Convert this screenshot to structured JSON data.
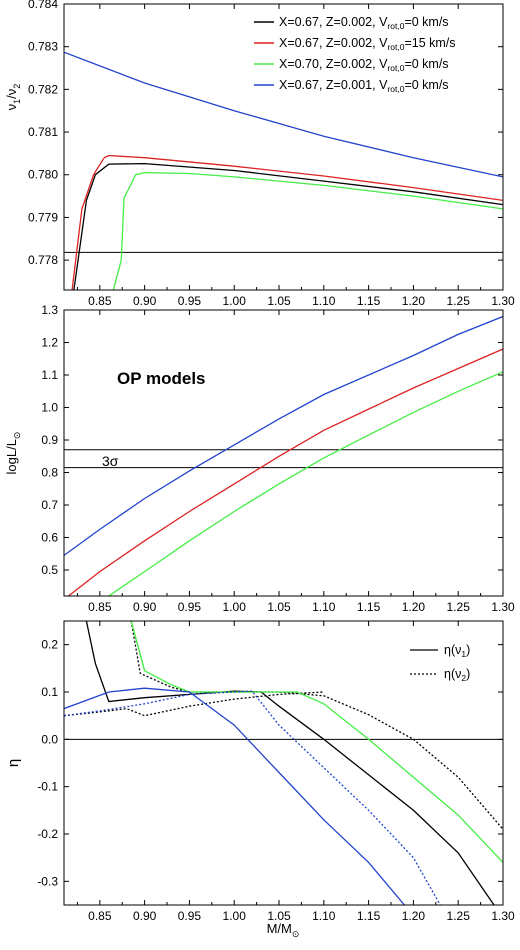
{
  "xlabel_main": "M/M",
  "xlabel_sub": "⊙",
  "x_ticks": [
    0.85,
    0.9,
    0.95,
    1.0,
    1.05,
    1.1,
    1.15,
    1.2,
    1.25,
    1.3
  ],
  "x_tick_labels": [
    "0.85",
    "0.90",
    "0.95",
    "1.00",
    "1.05",
    "1.10",
    "1.15",
    "1.20",
    "1.25",
    "1.30"
  ],
  "colors": {
    "black": "#000000",
    "red": "#dd2222",
    "green": "#44ee44",
    "blue": "#2244cc"
  },
  "chart_data": [
    {
      "type": "line",
      "ylabel": "ν1/ν2",
      "xlim": [
        0.81,
        1.3
      ],
      "ylim": [
        0.7773,
        0.784
      ],
      "y_ticks": [
        0.778,
        0.779,
        0.78,
        0.781,
        0.782,
        0.783,
        0.784
      ],
      "y_tick_labels": [
        "0.778",
        "0.779",
        "0.780",
        "0.781",
        "0.782",
        "0.783",
        "0.784"
      ],
      "legend_position": "top-right",
      "legend": [
        {
          "color": "black",
          "label": "X=0.67, Z=0.002, V",
          "sub": "rot,0",
          "tail": "=0 km/s"
        },
        {
          "color": "red",
          "label": "X=0.67, Z=0.002, V",
          "sub": "rot,0",
          "tail": "=15 km/s"
        },
        {
          "color": "green",
          "label": "X=0.70, Z=0.002, V",
          "sub": "rot,0",
          "tail": "=0 km/s"
        },
        {
          "color": "blue",
          "label": "X=0.67, Z=0.001, V",
          "sub": "rot,0",
          "tail": "=0 km/s"
        }
      ],
      "series": [
        {
          "color": "black",
          "dash": false,
          "points": [
            [
              0.821,
              0.7773
            ],
            [
              0.835,
              0.7794
            ],
            [
              0.845,
              0.78
            ],
            [
              0.86,
              0.78025
            ],
            [
              0.9,
              0.78026
            ],
            [
              1.0,
              0.7801
            ],
            [
              1.1,
              0.77985
            ],
            [
              1.2,
              0.7796
            ],
            [
              1.3,
              0.7793
            ]
          ]
        },
        {
          "color": "red",
          "dash": false,
          "points": [
            [
              0.819,
              0.7773
            ],
            [
              0.83,
              0.7792
            ],
            [
              0.843,
              0.78
            ],
            [
              0.855,
              0.7804
            ],
            [
              0.86,
              0.78045
            ],
            [
              0.9,
              0.7804
            ],
            [
              1.0,
              0.7802
            ],
            [
              1.1,
              0.77997
            ],
            [
              1.2,
              0.7797
            ],
            [
              1.3,
              0.7794
            ]
          ]
        },
        {
          "color": "green",
          "dash": false,
          "points": [
            [
              0.865,
              0.7773
            ],
            [
              0.874,
              0.778
            ],
            [
              0.877,
              0.77945
            ],
            [
              0.89,
              0.78
            ],
            [
              0.9,
              0.78005
            ],
            [
              0.95,
              0.78003
            ],
            [
              1.0,
              0.77995
            ],
            [
              1.1,
              0.77975
            ],
            [
              1.2,
              0.7795
            ],
            [
              1.3,
              0.7792
            ]
          ]
        },
        {
          "color": "blue",
          "dash": false,
          "points": [
            [
              0.81,
              0.78287
            ],
            [
              0.85,
              0.78255
            ],
            [
              0.9,
              0.78215
            ],
            [
              1.0,
              0.7815
            ],
            [
              1.1,
              0.7809
            ],
            [
              1.2,
              0.7804
            ],
            [
              1.3,
              0.77995
            ]
          ]
        }
      ],
      "hlines": [
        0.77818
      ]
    },
    {
      "type": "line",
      "ylabel": "logL/L",
      "ylabel_sub": "⊙",
      "xlim": [
        0.81,
        1.3
      ],
      "ylim": [
        0.42,
        1.3
      ],
      "y_ticks": [
        0.5,
        0.6,
        0.7,
        0.8,
        0.9,
        1.0,
        1.1,
        1.2,
        1.3
      ],
      "y_tick_labels": [
        "0.5",
        "0.6",
        "0.7",
        "0.8",
        "0.9",
        "1.0",
        "1.1",
        "1.2",
        "1.3"
      ],
      "annotation_title": "OP models",
      "annotation_sigma": "3σ",
      "series": [
        {
          "color": "blue",
          "dash": false,
          "points": [
            [
              0.81,
              0.545
            ],
            [
              0.85,
              0.625
            ],
            [
              0.9,
              0.72
            ],
            [
              0.95,
              0.805
            ],
            [
              1.0,
              0.885
            ],
            [
              1.05,
              0.965
            ],
            [
              1.1,
              1.04
            ],
            [
              1.15,
              1.1
            ],
            [
              1.2,
              1.16
            ],
            [
              1.25,
              1.225
            ],
            [
              1.3,
              1.28
            ]
          ]
        },
        {
          "color": "red",
          "dash": false,
          "points": [
            [
              0.815,
              0.42
            ],
            [
              0.85,
              0.495
            ],
            [
              0.9,
              0.59
            ],
            [
              0.95,
              0.68
            ],
            [
              1.0,
              0.765
            ],
            [
              1.05,
              0.85
            ],
            [
              1.1,
              0.93
            ],
            [
              1.15,
              0.995
            ],
            [
              1.2,
              1.06
            ],
            [
              1.25,
              1.12
            ],
            [
              1.3,
              1.18
            ]
          ]
        },
        {
          "color": "green",
          "dash": false,
          "points": [
            [
              0.86,
              0.42
            ],
            [
              0.9,
              0.495
            ],
            [
              0.95,
              0.59
            ],
            [
              1.0,
              0.68
            ],
            [
              1.05,
              0.765
            ],
            [
              1.1,
              0.845
            ],
            [
              1.15,
              0.915
            ],
            [
              1.2,
              0.985
            ],
            [
              1.25,
              1.05
            ],
            [
              1.3,
              1.11
            ]
          ]
        }
      ],
      "hlines": [
        0.87,
        0.815
      ]
    },
    {
      "type": "line",
      "ylabel": "η",
      "xlim": [
        0.81,
        1.3
      ],
      "ylim": [
        -0.35,
        0.25
      ],
      "y_ticks": [
        -0.3,
        -0.2,
        -0.1,
        0.0,
        0.1,
        0.2
      ],
      "y_tick_labels": [
        "-0.3",
        "-0.2",
        "-0.1",
        "0.0",
        "0.1",
        "0.2"
      ],
      "legend_position": "top-right",
      "legend": [
        {
          "dash": false,
          "label": "η(ν",
          "sub": "1",
          "tail": ")"
        },
        {
          "dash": true,
          "label": "η(ν",
          "sub": "2",
          "tail": ")"
        }
      ],
      "series": [
        {
          "color": "black",
          "dash": false,
          "points": [
            [
              0.835,
              0.25
            ],
            [
              0.845,
              0.16
            ],
            [
              0.86,
              0.08
            ],
            [
              0.9,
              0.088
            ],
            [
              0.95,
              0.095
            ],
            [
              1.0,
              0.102
            ],
            [
              1.03,
              0.1
            ],
            [
              1.05,
              0.07
            ],
            [
              1.1,
              0.0
            ],
            [
              1.15,
              -0.075
            ],
            [
              1.2,
              -0.15
            ],
            [
              1.25,
              -0.24
            ],
            [
              1.29,
              -0.35
            ]
          ]
        },
        {
          "color": "black",
          "dash": true,
          "points": [
            [
              0.885,
              0.25
            ],
            [
              0.895,
              0.14
            ],
            [
              0.9,
              0.135
            ],
            [
              0.93,
              0.11
            ],
            [
              0.95,
              0.1
            ],
            [
              1.0,
              0.1
            ],
            [
              1.05,
              0.1
            ],
            [
              1.1,
              0.092
            ],
            [
              1.15,
              0.052
            ],
            [
              1.2,
              0.0
            ],
            [
              1.25,
              -0.08
            ],
            [
              1.3,
              -0.19
            ]
          ]
        },
        {
          "color": "black",
          "dash": true,
          "points": [
            [
              0.81,
              0.05
            ],
            [
              0.85,
              0.058
            ],
            [
              0.88,
              0.065
            ],
            [
              0.9,
              0.05
            ],
            [
              0.95,
              0.07
            ],
            [
              1.0,
              0.085
            ],
            [
              1.05,
              0.095
            ],
            [
              1.1,
              0.1
            ]
          ]
        },
        {
          "color": "green",
          "dash": false,
          "points": [
            [
              0.885,
              0.25
            ],
            [
              0.9,
              0.145
            ],
            [
              0.93,
              0.115
            ],
            [
              0.95,
              0.1
            ],
            [
              1.0,
              0.1
            ],
            [
              1.07,
              0.1
            ],
            [
              1.1,
              0.075
            ],
            [
              1.15,
              0.0
            ],
            [
              1.2,
              -0.08
            ],
            [
              1.25,
              -0.16
            ],
            [
              1.3,
              -0.26
            ]
          ]
        },
        {
          "color": "green",
          "dash": true,
          "points": [
            [
              0.885,
              0.25
            ],
            [
              0.9,
              0.145
            ]
          ]
        },
        {
          "color": "blue",
          "dash": false,
          "points": [
            [
              0.81,
              0.065
            ],
            [
              0.86,
              0.1
            ],
            [
              0.9,
              0.108
            ],
            [
              0.95,
              0.1
            ],
            [
              1.0,
              0.03
            ],
            [
              1.05,
              -0.07
            ],
            [
              1.1,
              -0.17
            ],
            [
              1.15,
              -0.26
            ],
            [
              1.19,
              -0.35
            ]
          ]
        },
        {
          "color": "blue",
          "dash": true,
          "points": [
            [
              0.81,
              0.05
            ],
            [
              0.85,
              0.06
            ],
            [
              0.9,
              0.075
            ],
            [
              0.95,
              0.095
            ],
            [
              1.0,
              0.1
            ],
            [
              1.02,
              0.102
            ],
            [
              1.05,
              0.03
            ],
            [
              1.1,
              -0.06
            ],
            [
              1.15,
              -0.15
            ],
            [
              1.2,
              -0.25
            ],
            [
              1.23,
              -0.35
            ]
          ]
        }
      ],
      "hlines": [
        0.0
      ]
    }
  ]
}
